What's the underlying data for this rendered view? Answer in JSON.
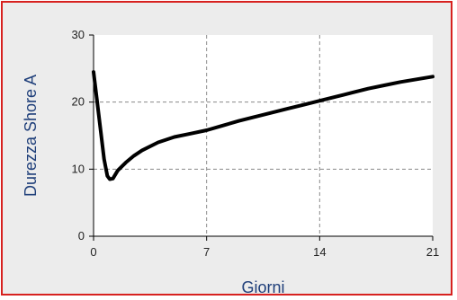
{
  "chart_data": {
    "type": "line",
    "xlabel": "Giorni",
    "ylabel": "Durezza Shore A",
    "xlim": [
      0,
      21
    ],
    "ylim": [
      0,
      30
    ],
    "xticks": [
      "0",
      "7",
      "14",
      "21"
    ],
    "yticks": [
      "0",
      "10",
      "20",
      "30"
    ],
    "grid": true,
    "series": [
      {
        "color": "#000000",
        "x": [
          0,
          0.1,
          0.25,
          0.45,
          0.65,
          0.85,
          1.0,
          1.2,
          1.5,
          2,
          2.5,
          3,
          4,
          5,
          6,
          7,
          8,
          9,
          10,
          11,
          12,
          13,
          14,
          15,
          16,
          17,
          18,
          19,
          20,
          21
        ],
        "y": [
          24.5,
          22.5,
          19.5,
          15.5,
          11.5,
          9.0,
          8.5,
          8.6,
          9.8,
          11.0,
          12.0,
          12.8,
          14.0,
          14.8,
          15.3,
          15.8,
          16.5,
          17.2,
          17.8,
          18.4,
          19.0,
          19.6,
          20.2,
          20.8,
          21.4,
          22.0,
          22.5,
          23.0,
          23.4,
          23.8
        ]
      }
    ],
    "colors": {
      "frame_border": "#d7211f",
      "frame_bg": "#ececec",
      "plot_bg": "#ffffff",
      "grid": "#8a8a8a",
      "axis_label": "#1f3f7a"
    }
  }
}
